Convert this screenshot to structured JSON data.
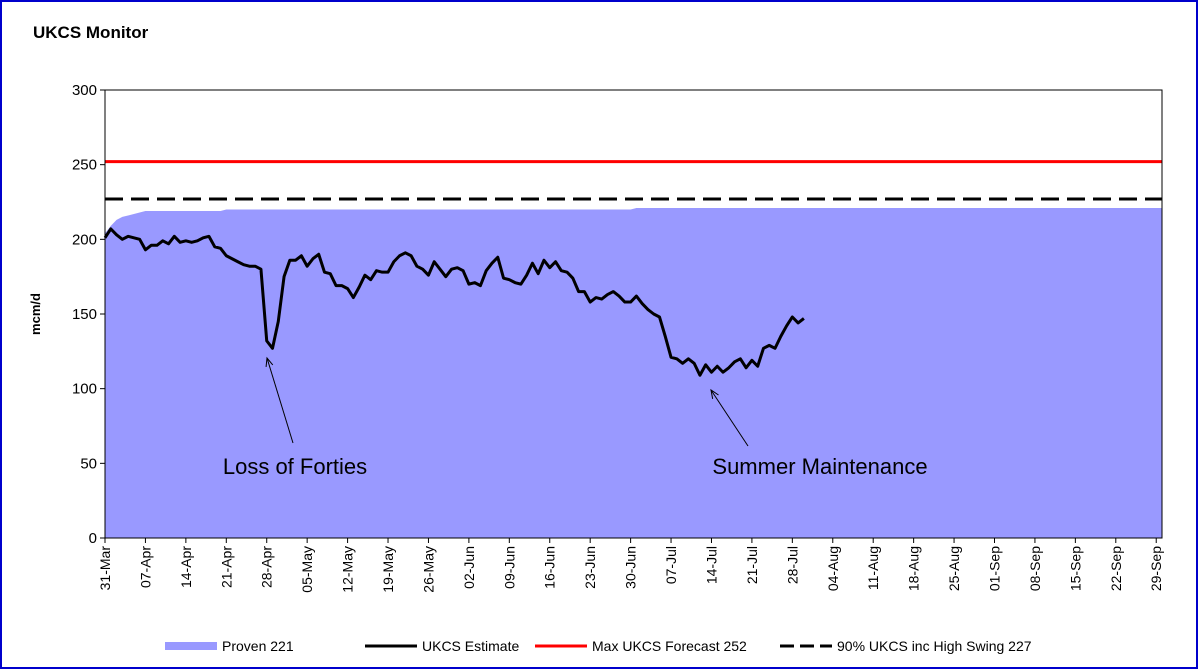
{
  "chart_data": {
    "type": "area-line",
    "title": "UKCS Monitor",
    "y_label": "mcm/d",
    "ylim": [
      0,
      300
    ],
    "yticks": [
      0,
      50,
      100,
      150,
      200,
      250,
      300
    ],
    "categories": [
      "31-Mar",
      null,
      null,
      null,
      null,
      null,
      null,
      "07-Apr",
      null,
      null,
      null,
      null,
      null,
      null,
      "14-Apr",
      null,
      null,
      null,
      null,
      null,
      null,
      "21-Apr",
      null,
      null,
      null,
      null,
      null,
      null,
      "28-Apr",
      null,
      null,
      null,
      null,
      null,
      null,
      "05-May",
      null,
      null,
      null,
      null,
      null,
      null,
      "12-May",
      null,
      null,
      null,
      null,
      null,
      null,
      "19-May",
      null,
      null,
      null,
      null,
      null,
      null,
      "26-May",
      null,
      null,
      null,
      null,
      null,
      null,
      "02-Jun",
      null,
      null,
      null,
      null,
      null,
      null,
      "09-Jun",
      null,
      null,
      null,
      null,
      null,
      null,
      "16-Jun",
      null,
      null,
      null,
      null,
      null,
      null,
      "23-Jun",
      null,
      null,
      null,
      null,
      null,
      null,
      "30-Jun",
      null,
      null,
      null,
      null,
      null,
      null,
      "07-Jul",
      null,
      null,
      null,
      null,
      null,
      null,
      "14-Jul",
      null,
      null,
      null,
      null,
      null,
      null,
      "21-Jul",
      null,
      null,
      null,
      null,
      null,
      null,
      "28-Jul",
      null,
      null,
      null,
      null,
      null,
      null,
      "04-Aug",
      null,
      null,
      null,
      null,
      null,
      null,
      "11-Aug",
      null,
      null,
      null,
      null,
      null,
      null,
      "18-Aug",
      null,
      null,
      null,
      null,
      null,
      null,
      "25-Aug",
      null,
      null,
      null,
      null,
      null,
      null,
      "01-Sep",
      null,
      null,
      null,
      null,
      null,
      null,
      "08-Sep",
      null,
      null,
      null,
      null,
      null,
      null,
      "15-Sep",
      null,
      null,
      null,
      null,
      null,
      null,
      "22-Sep",
      null,
      null,
      null,
      null,
      null,
      null,
      "29-Sep"
    ],
    "series": [
      {
        "name": "Proven 221",
        "kind": "area",
        "color": "#9999ff",
        "values": [
          204,
          209,
          213,
          215,
          216,
          217,
          218,
          219,
          219,
          219,
          219,
          219,
          219,
          219,
          219,
          219,
          219,
          219,
          219,
          219,
          219,
          220,
          220,
          220,
          220,
          220,
          220,
          220,
          220,
          220,
          220,
          220,
          220,
          220,
          220,
          220,
          220,
          220,
          220,
          220,
          220,
          220,
          220,
          220,
          220,
          220,
          220,
          220,
          220,
          220,
          220,
          220,
          220,
          220,
          220,
          220,
          220,
          220,
          220,
          220,
          220,
          220,
          220,
          220,
          220,
          220,
          220,
          220,
          220,
          220,
          220,
          220,
          220,
          220,
          220,
          220,
          220,
          220,
          220,
          220,
          220,
          220,
          220,
          220,
          220,
          220,
          220,
          220,
          220,
          220,
          220,
          220,
          221,
          221,
          221,
          221,
          221,
          221,
          221,
          221,
          221,
          221,
          221,
          221,
          221,
          221,
          221,
          221,
          221,
          221,
          221,
          221,
          221,
          221,
          221,
          221,
          221,
          221,
          221,
          221,
          221,
          221,
          221,
          221,
          221,
          221,
          221,
          221,
          221,
          221,
          221,
          221,
          221,
          221,
          221,
          221,
          221,
          221,
          221,
          221,
          221,
          221,
          221,
          221,
          221,
          221,
          221,
          221,
          221,
          221,
          221,
          221,
          221,
          221,
          221,
          221,
          221,
          221,
          221,
          221,
          221,
          221,
          221,
          221,
          221,
          221,
          221,
          221,
          221,
          221,
          221,
          221,
          221,
          221,
          221,
          221,
          221,
          221,
          221,
          221,
          221,
          221,
          221
        ]
      },
      {
        "name": "UKCS Estimate",
        "kind": "line",
        "color": "#000000",
        "values": [
          201,
          207,
          203,
          200,
          202,
          201,
          200,
          193,
          196,
          196,
          199,
          197,
          202,
          198,
          199,
          198,
          199,
          201,
          202,
          195,
          194,
          189,
          187,
          185,
          183,
          182,
          182,
          180,
          132,
          127,
          145,
          175,
          186,
          186,
          189,
          182,
          187,
          190,
          178,
          177,
          169,
          169,
          167,
          161,
          168,
          176,
          173,
          179,
          178,
          178,
          185,
          189,
          191,
          189,
          182,
          180,
          176,
          185,
          180,
          175,
          180,
          181,
          179,
          170,
          171,
          169,
          179,
          184,
          188,
          174,
          173,
          171,
          170,
          176,
          184,
          177,
          186,
          181,
          185,
          179,
          178,
          174,
          165,
          165,
          158,
          161,
          160,
          163,
          165,
          162,
          158,
          158,
          162,
          157,
          153,
          150,
          148,
          135,
          121,
          120,
          117,
          120,
          117,
          109,
          116,
          111,
          115,
          111,
          114,
          118,
          120,
          114,
          119,
          115,
          127,
          129,
          127,
          135,
          142,
          148,
          144,
          147,
          null,
          null,
          null,
          null,
          null,
          null,
          null,
          null,
          null,
          null,
          null,
          null,
          null,
          null,
          null,
          null,
          null,
          null,
          null,
          null,
          null,
          null,
          null,
          null,
          null,
          null,
          null,
          null,
          null,
          null,
          null,
          null,
          null,
          null,
          null,
          null,
          null,
          null,
          null,
          null,
          null,
          null,
          null,
          null,
          null,
          null,
          null,
          null,
          null,
          null,
          null,
          null,
          null,
          null,
          null,
          null,
          null,
          null,
          null,
          null,
          null
        ]
      }
    ],
    "reference_lines": [
      {
        "name": "Max UKCS Forecast 252",
        "value": 252,
        "color": "#ff0000",
        "dashed": false
      },
      {
        "name": "90% UKCS inc High Swing 227",
        "value": 227,
        "color": "#000000",
        "dashed": true
      }
    ],
    "annotations": [
      {
        "text": "Loss of Forties"
      },
      {
        "text": "Summer Maintenance"
      }
    ]
  }
}
